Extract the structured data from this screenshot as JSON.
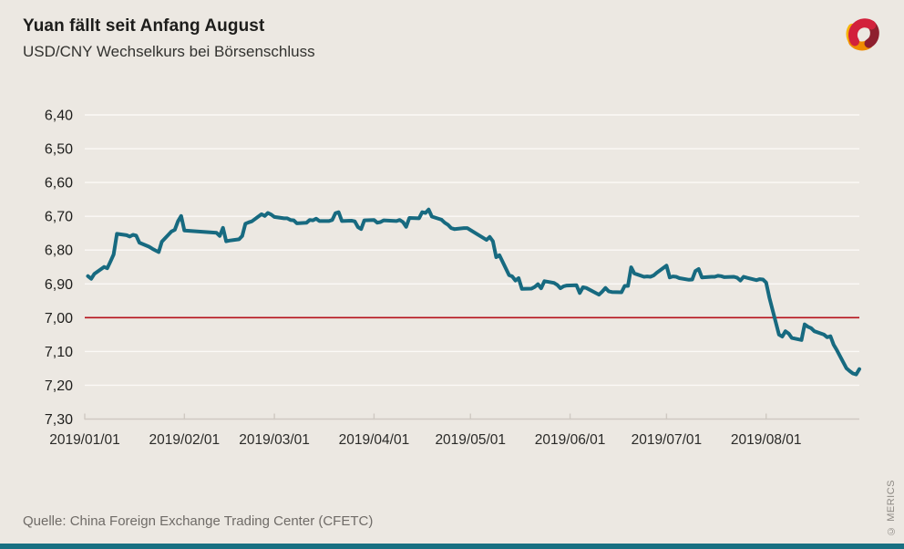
{
  "header": {
    "title": "Yuan fällt seit Anfang August",
    "subtitle": "USD/CNY Wechselkurs bei Börsenschluss"
  },
  "footer": {
    "source": "Quelle: China Foreign Exchange Trading Center (CFETC)",
    "copyright": "© MERICS"
  },
  "branding": {
    "logo_icon": "merics-swirl-logo",
    "bar_color": "#187082",
    "logo_colors": {
      "red": "#d2203b",
      "dark_red": "#8e1f2e",
      "orange": "#ef8c00",
      "yellow": "#f6b40a"
    }
  },
  "colors": {
    "background": "#ece8e2",
    "gridline": "#fbf9f6",
    "axis_line": "#cfc9c2",
    "series_line": "#176a80",
    "reference_line": "#b5121b",
    "tick_label": "#1d1d1b",
    "source_text": "#6f6b67"
  },
  "chart_data": {
    "type": "line",
    "title": "Yuan fällt seit Anfang August",
    "subtitle": "USD/CNY Wechselkurs bei Börsenschluss",
    "xlabel": "",
    "ylabel": "",
    "grid": true,
    "legend": false,
    "y_axis": {
      "inverted": true,
      "range": [
        6.4,
        7.3
      ],
      "tick_values": [
        6.4,
        6.5,
        6.6,
        6.7,
        6.8,
        6.9,
        7.0,
        7.1,
        7.2,
        7.3
      ],
      "tick_labels": [
        "6,40",
        "6,50",
        "6,60",
        "6,70",
        "6,80",
        "6,90",
        "7,00",
        "7,10",
        "7,20",
        "7,30"
      ]
    },
    "x_axis": {
      "domain_days": [
        0,
        241
      ],
      "tick_days": [
        0,
        31,
        59,
        90,
        120,
        151,
        181,
        212
      ],
      "tick_labels": [
        "2019/01/01",
        "2019/02/01",
        "2019/03/01",
        "2019/04/01",
        "2019/05/01",
        "2019/06/01",
        "2019/07/01",
        "2019/08/01"
      ]
    },
    "reference_line": {
      "value": 7.0,
      "color": "#b5121b"
    },
    "series": [
      {
        "name": "USD/CNY Wechselkurs bei Börsenschluss",
        "color": "#176a80",
        "points": [
          [
            "2019-01-02",
            6.877
          ],
          [
            "2019-01-03",
            6.885
          ],
          [
            "2019-01-04",
            6.87
          ],
          [
            "2019-01-07",
            6.85
          ],
          [
            "2019-01-08",
            6.854
          ],
          [
            "2019-01-09",
            6.834
          ],
          [
            "2019-01-10",
            6.813
          ],
          [
            "2019-01-11",
            6.752
          ],
          [
            "2019-01-14",
            6.756
          ],
          [
            "2019-01-15",
            6.76
          ],
          [
            "2019-01-16",
            6.755
          ],
          [
            "2019-01-17",
            6.757
          ],
          [
            "2019-01-18",
            6.778
          ],
          [
            "2019-01-21",
            6.79
          ],
          [
            "2019-01-22",
            6.796
          ],
          [
            "2019-01-23",
            6.801
          ],
          [
            "2019-01-24",
            6.806
          ],
          [
            "2019-01-25",
            6.775
          ],
          [
            "2019-01-28",
            6.745
          ],
          [
            "2019-01-29",
            6.74
          ],
          [
            "2019-01-30",
            6.715
          ],
          [
            "2019-01-31",
            6.699
          ],
          [
            "2019-02-01",
            6.742
          ],
          [
            "2019-02-11",
            6.749
          ],
          [
            "2019-02-12",
            6.758
          ],
          [
            "2019-02-13",
            6.734
          ],
          [
            "2019-02-14",
            6.774
          ],
          [
            "2019-02-15",
            6.772
          ],
          [
            "2019-02-18",
            6.768
          ],
          [
            "2019-02-19",
            6.758
          ],
          [
            "2019-02-20",
            6.722
          ],
          [
            "2019-02-21",
            6.718
          ],
          [
            "2019-02-22",
            6.715
          ],
          [
            "2019-02-25",
            6.694
          ],
          [
            "2019-02-26",
            6.699
          ],
          [
            "2019-02-27",
            6.69
          ],
          [
            "2019-02-28",
            6.695
          ],
          [
            "2019-03-01",
            6.702
          ],
          [
            "2019-03-04",
            6.706
          ],
          [
            "2019-03-05",
            6.706
          ],
          [
            "2019-03-06",
            6.711
          ],
          [
            "2019-03-07",
            6.712
          ],
          [
            "2019-03-08",
            6.721
          ],
          [
            "2019-03-11",
            6.719
          ],
          [
            "2019-03-12",
            6.711
          ],
          [
            "2019-03-13",
            6.712
          ],
          [
            "2019-03-14",
            6.707
          ],
          [
            "2019-03-15",
            6.714
          ],
          [
            "2019-03-18",
            6.714
          ],
          [
            "2019-03-19",
            6.711
          ],
          [
            "2019-03-20",
            6.691
          ],
          [
            "2019-03-21",
            6.688
          ],
          [
            "2019-03-22",
            6.714
          ],
          [
            "2019-03-25",
            6.713
          ],
          [
            "2019-03-26",
            6.715
          ],
          [
            "2019-03-27",
            6.732
          ],
          [
            "2019-03-28",
            6.738
          ],
          [
            "2019-03-29",
            6.712
          ],
          [
            "2019-04-01",
            6.711
          ],
          [
            "2019-04-02",
            6.719
          ],
          [
            "2019-04-03",
            6.717
          ],
          [
            "2019-04-04",
            6.712
          ],
          [
            "2019-04-08",
            6.714
          ],
          [
            "2019-04-09",
            6.711
          ],
          [
            "2019-04-10",
            6.717
          ],
          [
            "2019-04-11",
            6.731
          ],
          [
            "2019-04-12",
            6.705
          ],
          [
            "2019-04-15",
            6.706
          ],
          [
            "2019-04-16",
            6.688
          ],
          [
            "2019-04-17",
            6.69
          ],
          [
            "2019-04-18",
            6.68
          ],
          [
            "2019-04-19",
            6.701
          ],
          [
            "2019-04-22",
            6.71
          ],
          [
            "2019-04-23",
            6.719
          ],
          [
            "2019-04-24",
            6.725
          ],
          [
            "2019-04-25",
            6.735
          ],
          [
            "2019-04-26",
            6.738
          ],
          [
            "2019-04-29",
            6.735
          ],
          [
            "2019-04-30",
            6.735
          ],
          [
            "2019-05-06",
            6.77
          ],
          [
            "2019-05-07",
            6.761
          ],
          [
            "2019-05-08",
            6.774
          ],
          [
            "2019-05-09",
            6.821
          ],
          [
            "2019-05-10",
            6.815
          ],
          [
            "2019-05-13",
            6.874
          ],
          [
            "2019-05-14",
            6.878
          ],
          [
            "2019-05-15",
            6.89
          ],
          [
            "2019-05-16",
            6.883
          ],
          [
            "2019-05-17",
            6.915
          ],
          [
            "2019-05-20",
            6.914
          ],
          [
            "2019-05-21",
            6.909
          ],
          [
            "2019-05-22",
            6.901
          ],
          [
            "2019-05-23",
            6.913
          ],
          [
            "2019-05-24",
            6.892
          ],
          [
            "2019-05-27",
            6.897
          ],
          [
            "2019-05-28",
            6.903
          ],
          [
            "2019-05-29",
            6.913
          ],
          [
            "2019-05-30",
            6.907
          ],
          [
            "2019-05-31",
            6.905
          ],
          [
            "2019-06-03",
            6.904
          ],
          [
            "2019-06-04",
            6.927
          ],
          [
            "2019-06-05",
            6.91
          ],
          [
            "2019-06-06",
            6.912
          ],
          [
            "2019-06-10",
            6.932
          ],
          [
            "2019-06-11",
            6.923
          ],
          [
            "2019-06-12",
            6.912
          ],
          [
            "2019-06-13",
            6.922
          ],
          [
            "2019-06-14",
            6.924
          ],
          [
            "2019-06-17",
            6.925
          ],
          [
            "2019-06-18",
            6.906
          ],
          [
            "2019-06-19",
            6.906
          ],
          [
            "2019-06-20",
            6.851
          ],
          [
            "2019-06-21",
            6.869
          ],
          [
            "2019-06-24",
            6.879
          ],
          [
            "2019-06-25",
            6.878
          ],
          [
            "2019-06-26",
            6.879
          ],
          [
            "2019-06-27",
            6.875
          ],
          [
            "2019-06-28",
            6.867
          ],
          [
            "2019-07-01",
            6.846
          ],
          [
            "2019-07-02",
            6.881
          ],
          [
            "2019-07-03",
            6.878
          ],
          [
            "2019-07-04",
            6.879
          ],
          [
            "2019-07-05",
            6.883
          ],
          [
            "2019-07-08",
            6.888
          ],
          [
            "2019-07-09",
            6.887
          ],
          [
            "2019-07-10",
            6.862
          ],
          [
            "2019-07-11",
            6.856
          ],
          [
            "2019-07-12",
            6.881
          ],
          [
            "2019-07-15",
            6.879
          ],
          [
            "2019-07-16",
            6.879
          ],
          [
            "2019-07-17",
            6.876
          ],
          [
            "2019-07-18",
            6.877
          ],
          [
            "2019-07-19",
            6.88
          ],
          [
            "2019-07-22",
            6.879
          ],
          [
            "2019-07-23",
            6.882
          ],
          [
            "2019-07-24",
            6.89
          ],
          [
            "2019-07-25",
            6.879
          ],
          [
            "2019-07-26",
            6.882
          ],
          [
            "2019-07-29",
            6.889
          ],
          [
            "2019-07-30",
            6.886
          ],
          [
            "2019-07-31",
            6.887
          ],
          [
            "2019-08-01",
            6.896
          ],
          [
            "2019-08-02",
            6.94
          ],
          [
            "2019-08-05",
            7.05
          ],
          [
            "2019-08-06",
            7.056
          ],
          [
            "2019-08-07",
            7.04
          ],
          [
            "2019-08-08",
            7.047
          ],
          [
            "2019-08-09",
            7.06
          ],
          [
            "2019-08-12",
            7.066
          ],
          [
            "2019-08-13",
            7.02
          ],
          [
            "2019-08-14",
            7.027
          ],
          [
            "2019-08-15",
            7.031
          ],
          [
            "2019-08-16",
            7.04
          ],
          [
            "2019-08-19",
            7.05
          ],
          [
            "2019-08-20",
            7.058
          ],
          [
            "2019-08-21",
            7.055
          ],
          [
            "2019-08-22",
            7.08
          ],
          [
            "2019-08-23",
            7.096
          ],
          [
            "2019-08-26",
            7.15
          ],
          [
            "2019-08-27",
            7.158
          ],
          [
            "2019-08-28",
            7.165
          ],
          [
            "2019-08-29",
            7.168
          ],
          [
            "2019-08-30",
            7.152
          ]
        ]
      }
    ]
  }
}
